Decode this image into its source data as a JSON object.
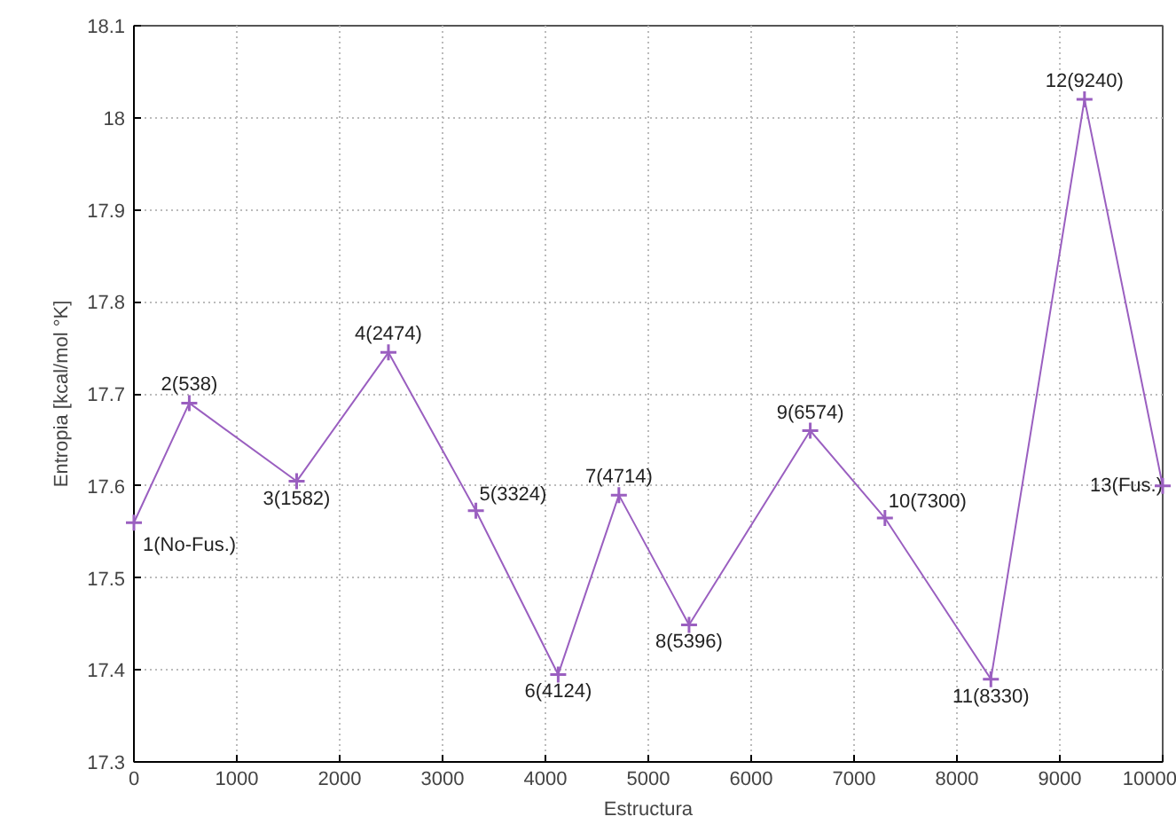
{
  "chart_data": {
    "type": "line",
    "xlabel": "Estructura",
    "ylabel": "Entropia [kcal/mol °K]",
    "x": [
      0,
      538,
      1582,
      2474,
      3324,
      4124,
      4714,
      5396,
      6574,
      7300,
      8330,
      9240,
      10000
    ],
    "series": [
      {
        "color": "#9a5fc0",
        "values": [
          17.56,
          17.69,
          17.605,
          17.745,
          17.573,
          17.395,
          17.59,
          17.449,
          17.66,
          17.565,
          17.39,
          18.02,
          17.6
        ]
      }
    ],
    "xlim": [
      0,
      10000
    ],
    "xticks": [
      0,
      1000,
      2000,
      3000,
      4000,
      5000,
      6000,
      7000,
      8000,
      9000,
      10000
    ],
    "ylim": [
      17.3,
      18.1
    ],
    "yticks": [
      17.3,
      17.4,
      17.5,
      17.6,
      17.7,
      17.8,
      17.9,
      18,
      18.1
    ],
    "grid": true,
    "marker": "cross",
    "line_style": "solid",
    "annotations": [
      {
        "text": "1(No-Fus.)",
        "x": 0,
        "y": 17.56
      },
      {
        "text": "2(538)",
        "x": 538,
        "y": 17.69
      },
      {
        "text": "3(1582)",
        "x": 1582,
        "y": 17.605
      },
      {
        "text": "4(2474)",
        "x": 2474,
        "y": 17.745
      },
      {
        "text": "5(3324)",
        "x": 3324,
        "y": 17.573
      },
      {
        "text": "6(4124)",
        "x": 4124,
        "y": 17.395
      },
      {
        "text": "7(4714)",
        "x": 4714,
        "y": 17.59
      },
      {
        "text": "8(5396)",
        "x": 5396,
        "y": 17.449
      },
      {
        "text": "9(6574)",
        "x": 6574,
        "y": 17.66
      },
      {
        "text": "10(7300)",
        "x": 7300,
        "y": 17.565
      },
      {
        "text": "11(8330)",
        "x": 8330,
        "y": 17.39
      },
      {
        "text": "12(9240)",
        "x": 9240,
        "y": 18.02
      },
      {
        "text": "13(Fus.)",
        "x": 10000,
        "y": 17.6
      }
    ]
  }
}
